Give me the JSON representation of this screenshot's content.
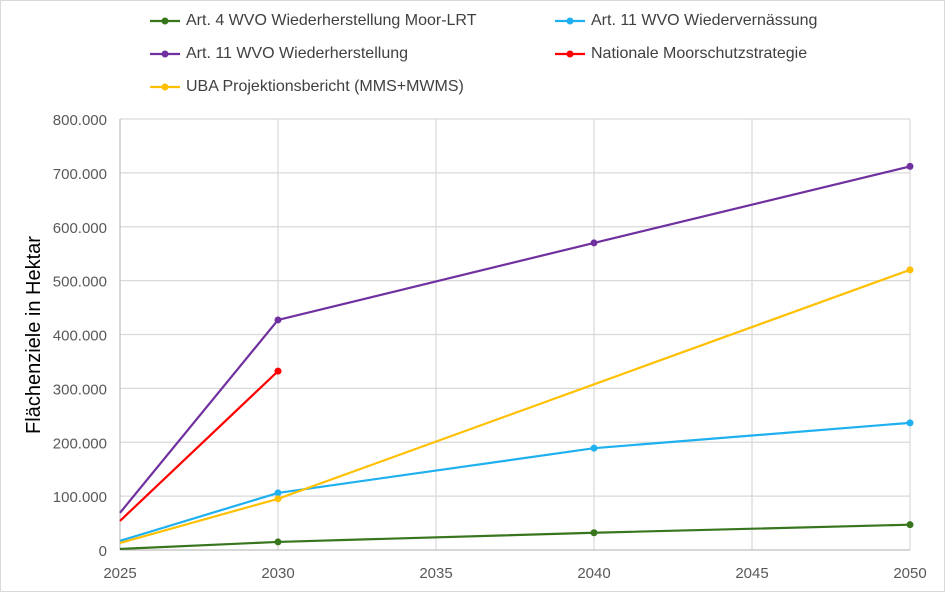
{
  "chart_data": {
    "type": "line",
    "title": "",
    "xlabel": "",
    "ylabel": "Flächenziele in Hektar",
    "xlim": [
      2025,
      2050
    ],
    "ylim": [
      0,
      800000
    ],
    "x_ticks": [
      "2025",
      "2030",
      "2035",
      "2040",
      "2045",
      "2050"
    ],
    "y_ticks": [
      "0",
      "100.000",
      "200.000",
      "300.000",
      "400.000",
      "500.000",
      "600.000",
      "700.000",
      "800.000"
    ],
    "grid": true,
    "legend_position": "top",
    "x": [
      2025,
      2030,
      2040,
      2050
    ],
    "series": [
      {
        "name": "Art. 4 WVO Wiederherstellung Moor-LRT",
        "color": "#38761d",
        "values": [
          2000,
          15000,
          32000,
          47000
        ]
      },
      {
        "name": "Art. 11 WVO Wiedervernässung",
        "color": "#1fb0ef",
        "values": [
          17000,
          106000,
          189000,
          236000
        ]
      },
      {
        "name": "Art. 11 WVO Wiederherstellung",
        "color": "#7030a0",
        "values": [
          69000,
          427000,
          570000,
          712000
        ]
      },
      {
        "name": "Nationale Moorschutzstrategie",
        "color": "#ff0000",
        "values": [
          54000,
          332000,
          null,
          null
        ]
      },
      {
        "name": "UBA Projektionsbericht (MMS+MWMS)",
        "color": "#ffc000",
        "values": [
          13000,
          95000,
          null,
          520000
        ]
      }
    ]
  }
}
